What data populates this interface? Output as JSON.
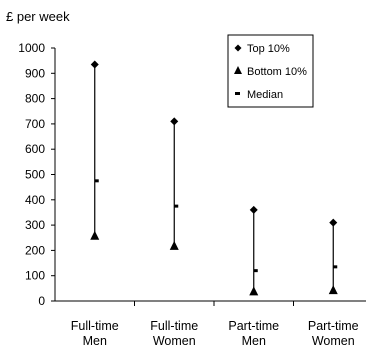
{
  "chart_data": {
    "type": "scatter",
    "subtype": "high-low-median range chart",
    "y_unit_label": "£ per week",
    "ylim": [
      0,
      1000
    ],
    "yticks": [
      0,
      100,
      200,
      300,
      400,
      500,
      600,
      700,
      800,
      900,
      1000
    ],
    "grid": false,
    "legend_position": "top-right",
    "categories": [
      [
        "Full-time",
        "Men"
      ],
      [
        "Full-time",
        "Women"
      ],
      [
        "Part-time",
        "Men"
      ],
      [
        "Part-time",
        "Women"
      ]
    ],
    "series": [
      {
        "name": "Top 10%",
        "marker": "diamond",
        "values": [
          935,
          710,
          360,
          310
        ]
      },
      {
        "name": "Bottom 10%",
        "marker": "triangle",
        "values": [
          260,
          220,
          40,
          45
        ]
      },
      {
        "name": "Median",
        "marker": "dash",
        "values": [
          475,
          375,
          120,
          135
        ]
      }
    ]
  }
}
